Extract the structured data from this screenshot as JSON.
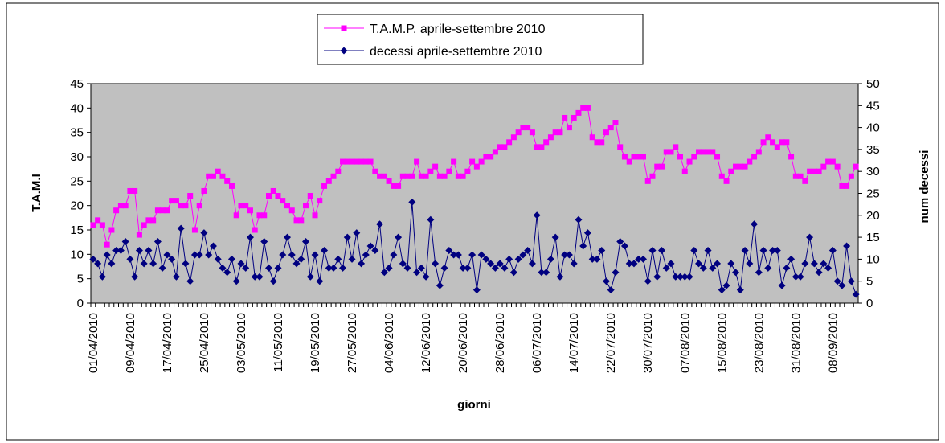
{
  "chart_data": {
    "type": "line",
    "x_label": "giorni",
    "y_label": "T.A.M.I",
    "y2_label": "num decessi",
    "legend": "top",
    "categories": [
      "01/04/2010",
      null,
      null,
      null,
      null,
      null,
      null,
      null,
      "09/04/2010",
      null,
      null,
      null,
      null,
      null,
      null,
      null,
      "17/04/2010",
      null,
      null,
      null,
      null,
      null,
      null,
      null,
      "25/04/2010",
      null,
      null,
      null,
      null,
      null,
      null,
      null,
      "03/05/2010",
      null,
      null,
      null,
      null,
      null,
      null,
      null,
      "11/05/2010",
      null,
      null,
      null,
      null,
      null,
      null,
      null,
      "19/05/2010",
      null,
      null,
      null,
      null,
      null,
      null,
      null,
      "27/05/2010",
      null,
      null,
      null,
      null,
      null,
      null,
      null,
      "04/06/2010",
      null,
      null,
      null,
      null,
      null,
      null,
      null,
      "12/06/2010",
      null,
      null,
      null,
      null,
      null,
      null,
      null,
      "20/06/2010",
      null,
      null,
      null,
      null,
      null,
      null,
      null,
      "28/06/2010",
      null,
      null,
      null,
      null,
      null,
      null,
      null,
      "06/07/2010",
      null,
      null,
      null,
      null,
      null,
      null,
      null,
      "14/07/2010",
      null,
      null,
      null,
      null,
      null,
      null,
      null,
      "22/07/2010",
      null,
      null,
      null,
      null,
      null,
      null,
      null,
      "30/07/2010",
      null,
      null,
      null,
      null,
      null,
      null,
      null,
      "07/08/2010",
      null,
      null,
      null,
      null,
      null,
      null,
      null,
      "15/08/2010",
      null,
      null,
      null,
      null,
      null,
      null,
      null,
      "23/08/2010",
      null,
      null,
      null,
      null,
      null,
      null,
      null,
      "31/08/2010",
      null,
      null,
      null,
      null,
      null,
      null,
      null,
      "08/09/2010",
      null,
      null,
      null,
      null,
      null
    ],
    "series": [
      {
        "name": "T.A.M.P. aprile-settembre 2010",
        "color": "#ff00ff",
        "marker": "square",
        "values": [
          16,
          17,
          16,
          12,
          15,
          19,
          20,
          20,
          23,
          23,
          14,
          16,
          17,
          17,
          19,
          19,
          19,
          21,
          21,
          20,
          20,
          22,
          15,
          20,
          23,
          26,
          26,
          27,
          26,
          25,
          24,
          18,
          20,
          20,
          19,
          15,
          18,
          18,
          22,
          23,
          22,
          21,
          20,
          19,
          17,
          17,
          20,
          22,
          18,
          21,
          24,
          25,
          26,
          27,
          29,
          29,
          29,
          29,
          29,
          29,
          29,
          27,
          26,
          26,
          25,
          24,
          24,
          26,
          26,
          26,
          29,
          26,
          26,
          27,
          28,
          26,
          26,
          27,
          29,
          26,
          26,
          27,
          29,
          28,
          29,
          30,
          30,
          31,
          32,
          32,
          33,
          34,
          35,
          36,
          36,
          35,
          32,
          32,
          33,
          34,
          35,
          35,
          38,
          36,
          38,
          39,
          40,
          40,
          34,
          33,
          33,
          35,
          36,
          37,
          32,
          30,
          29,
          30,
          30,
          30,
          25,
          26,
          28,
          28,
          31,
          31,
          32,
          30,
          27,
          29,
          30,
          31,
          31,
          31,
          31,
          30,
          26,
          25,
          27,
          28,
          28,
          28,
          29,
          30,
          31,
          33,
          34,
          33,
          32,
          33,
          33,
          30,
          26,
          26,
          25,
          27,
          27,
          27,
          28,
          29,
          29,
          28,
          24,
          24,
          26,
          28
        ]
      },
      {
        "name": "decessi aprile-settembre 2010",
        "color": "#000080",
        "marker": "diamond",
        "axis": "y2",
        "values": [
          10,
          9,
          6,
          11,
          9,
          12,
          12,
          14,
          10,
          6,
          12,
          9,
          12,
          9,
          14,
          8,
          11,
          10,
          6,
          17,
          9,
          5,
          11,
          11,
          16,
          11,
          13,
          10,
          8,
          7,
          10,
          5,
          9,
          8,
          15,
          6,
          6,
          14,
          8,
          5,
          8,
          11,
          15,
          11,
          9,
          10,
          14,
          6,
          11,
          5,
          12,
          8,
          8,
          10,
          8,
          15,
          10,
          16,
          9,
          11,
          13,
          12,
          18,
          7,
          8,
          11,
          15,
          9,
          8,
          23,
          7,
          8,
          6,
          19,
          9,
          4,
          8,
          12,
          11,
          11,
          8,
          8,
          11,
          3,
          11,
          10,
          9,
          8,
          9,
          8,
          10,
          7,
          10,
          11,
          12,
          9,
          20,
          7,
          7,
          10,
          15,
          6,
          11,
          11,
          9,
          19,
          13,
          16,
          10,
          10,
          12,
          5,
          3,
          7,
          14,
          13,
          9,
          9,
          10,
          10,
          5,
          12,
          6,
          12,
          8,
          9,
          6,
          6,
          6,
          6,
          12,
          9,
          8,
          12,
          8,
          9,
          3,
          4,
          9,
          7,
          3,
          12,
          9,
          18,
          7,
          12,
          8,
          12,
          12,
          4,
          8,
          10,
          6,
          6,
          9,
          15,
          9,
          7,
          9,
          8,
          12,
          5,
          4,
          13,
          5,
          2
        ]
      }
    ],
    "ylim": [
      0,
      45
    ],
    "yticks": [
      0,
      5,
      10,
      15,
      20,
      25,
      30,
      35,
      40,
      45
    ],
    "y2lim": [
      0,
      50
    ],
    "y2ticks": [
      0,
      5,
      10,
      15,
      20,
      25,
      30,
      35,
      40,
      45,
      50
    ],
    "plot_background": "#c0c0c0"
  }
}
